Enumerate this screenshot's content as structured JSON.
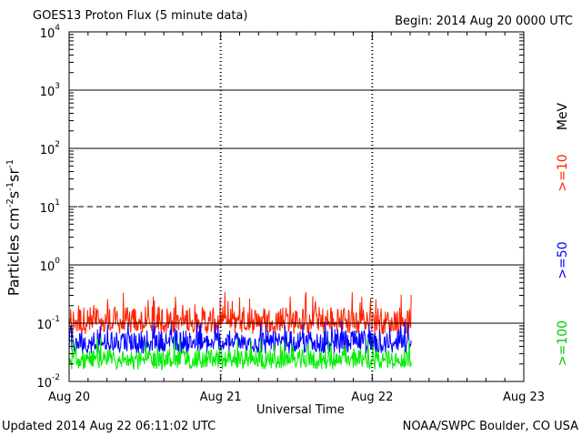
{
  "header": {
    "title": "GOES13 Proton Flux (5 minute data)",
    "begin": "Begin: 2014 Aug 20 0000 UTC"
  },
  "footer": {
    "updated": "Updated 2014 Aug 22 06:11:02 UTC",
    "credit": "NOAA/SWPC Boulder, CO USA"
  },
  "chart_data": {
    "type": "line",
    "title": "GOES13 Proton Flux (5 minute data)",
    "xlabel": "Universal Time",
    "ylabel": "Particles cm-2s-1sr-1",
    "y_scale": "log",
    "ylim": [
      0.01,
      10000
    ],
    "xlim": [
      "2014-08-20 00:00",
      "2014-08-23 00:00"
    ],
    "x_tick_labels": [
      "Aug 20",
      "Aug 21",
      "Aug 22",
      "Aug 23"
    ],
    "y_tick_labels": [
      {
        "base": "10",
        "exp": "-2",
        "value": 0.01
      },
      {
        "base": "10",
        "exp": "-1",
        "value": 0.1
      },
      {
        "base": "10",
        "exp": "0",
        "value": 1
      },
      {
        "base": "10",
        "exp": "1",
        "value": 10
      },
      {
        "base": "10",
        "exp": "2",
        "value": 100
      },
      {
        "base": "10",
        "exp": "3",
        "value": 1000
      },
      {
        "base": "10",
        "exp": "4",
        "value": 10000
      }
    ],
    "dashed_reference_level": 10,
    "right_axis_unit": "MeV",
    "data_end": "2014-08-22 06:10",
    "series": [
      {
        "name": ">=10",
        "color": "#ff2200",
        "typical": 0.12,
        "low": 0.065,
        "high": 0.36
      },
      {
        "name": ">=50",
        "color": "#0000ff",
        "typical": 0.05,
        "low": 0.03,
        "high": 0.11
      },
      {
        "name": ">=100",
        "color": "#00ee00",
        "typical": 0.025,
        "low": 0.016,
        "high": 0.06
      }
    ]
  }
}
